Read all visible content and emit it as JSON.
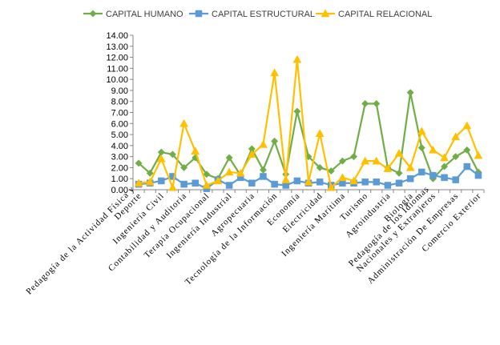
{
  "chart_data": {
    "type": "line",
    "legend_position": "top",
    "grid": false,
    "ylim": [
      0,
      14
    ],
    "yticks": [
      "0.00",
      "1.00",
      "2.00",
      "3.00",
      "4.00",
      "5.00",
      "6.00",
      "7.00",
      "8.00",
      "9.00",
      "10.00",
      "11.00",
      "12.00",
      "13.00",
      "14.00"
    ],
    "labeled_categories": [
      "Pedagogía de la Actividad Física y Deporte",
      "Ingeniería Civil",
      "Contabilidad y Auditoria",
      "Terapia Ocupacional",
      "Ingeniería Industrial",
      "Agropecuaria",
      "Tecnología de la Información",
      "Economía",
      "Electricidad",
      "Ingeniería Marítima",
      "Turismo",
      "Agroindustria",
      "Biología",
      "Pedagogía de los Idiomas Nacionales y Extranjeros",
      "Administración De Empresas",
      "Comercio Exterior"
    ],
    "label_indices": [
      0,
      2,
      4,
      6,
      8,
      10,
      12,
      14,
      16,
      18,
      20,
      22,
      24,
      26,
      28,
      30
    ],
    "point_count": 31,
    "series": [
      {
        "name": "CAPITAL HUMANO",
        "color": "#70AD47",
        "marker": "diamond",
        "values": [
          2.4,
          1.5,
          3.4,
          3.2,
          2.0,
          2.9,
          1.4,
          1.0,
          2.9,
          1.3,
          3.7,
          1.8,
          4.4,
          1.4,
          7.1,
          3.0,
          2.0,
          1.7,
          2.6,
          3.0,
          7.8,
          7.8,
          2.0,
          1.5,
          8.8,
          3.8,
          1.0,
          2.1,
          3.0,
          3.6,
          1.6
        ]
      },
      {
        "name": "CAPITAL ESTRUCTURAL",
        "color": "#5B9BD5",
        "marker": "square",
        "values": [
          0.5,
          0.6,
          0.8,
          1.2,
          0.5,
          0.6,
          0.1,
          0.9,
          0.4,
          1.1,
          0.6,
          1.2,
          0.5,
          0.4,
          0.8,
          0.6,
          0.7,
          0.4,
          0.6,
          0.6,
          0.7,
          0.7,
          0.4,
          0.6,
          1.0,
          1.6,
          1.3,
          1.1,
          0.9,
          2.1,
          1.3
        ]
      },
      {
        "name": "CAPITAL RELACIONAL",
        "color": "#FFC000",
        "marker": "triangle",
        "values": [
          0.6,
          0.7,
          2.8,
          0.2,
          6.0,
          3.5,
          0.4,
          0.8,
          1.6,
          1.5,
          3.2,
          4.1,
          10.6,
          0.9,
          11.8,
          0.7,
          5.1,
          0.2,
          1.1,
          0.8,
          2.6,
          2.6,
          1.9,
          3.3,
          2.0,
          5.3,
          3.6,
          2.9,
          4.8,
          5.8,
          3.1
        ]
      }
    ]
  }
}
